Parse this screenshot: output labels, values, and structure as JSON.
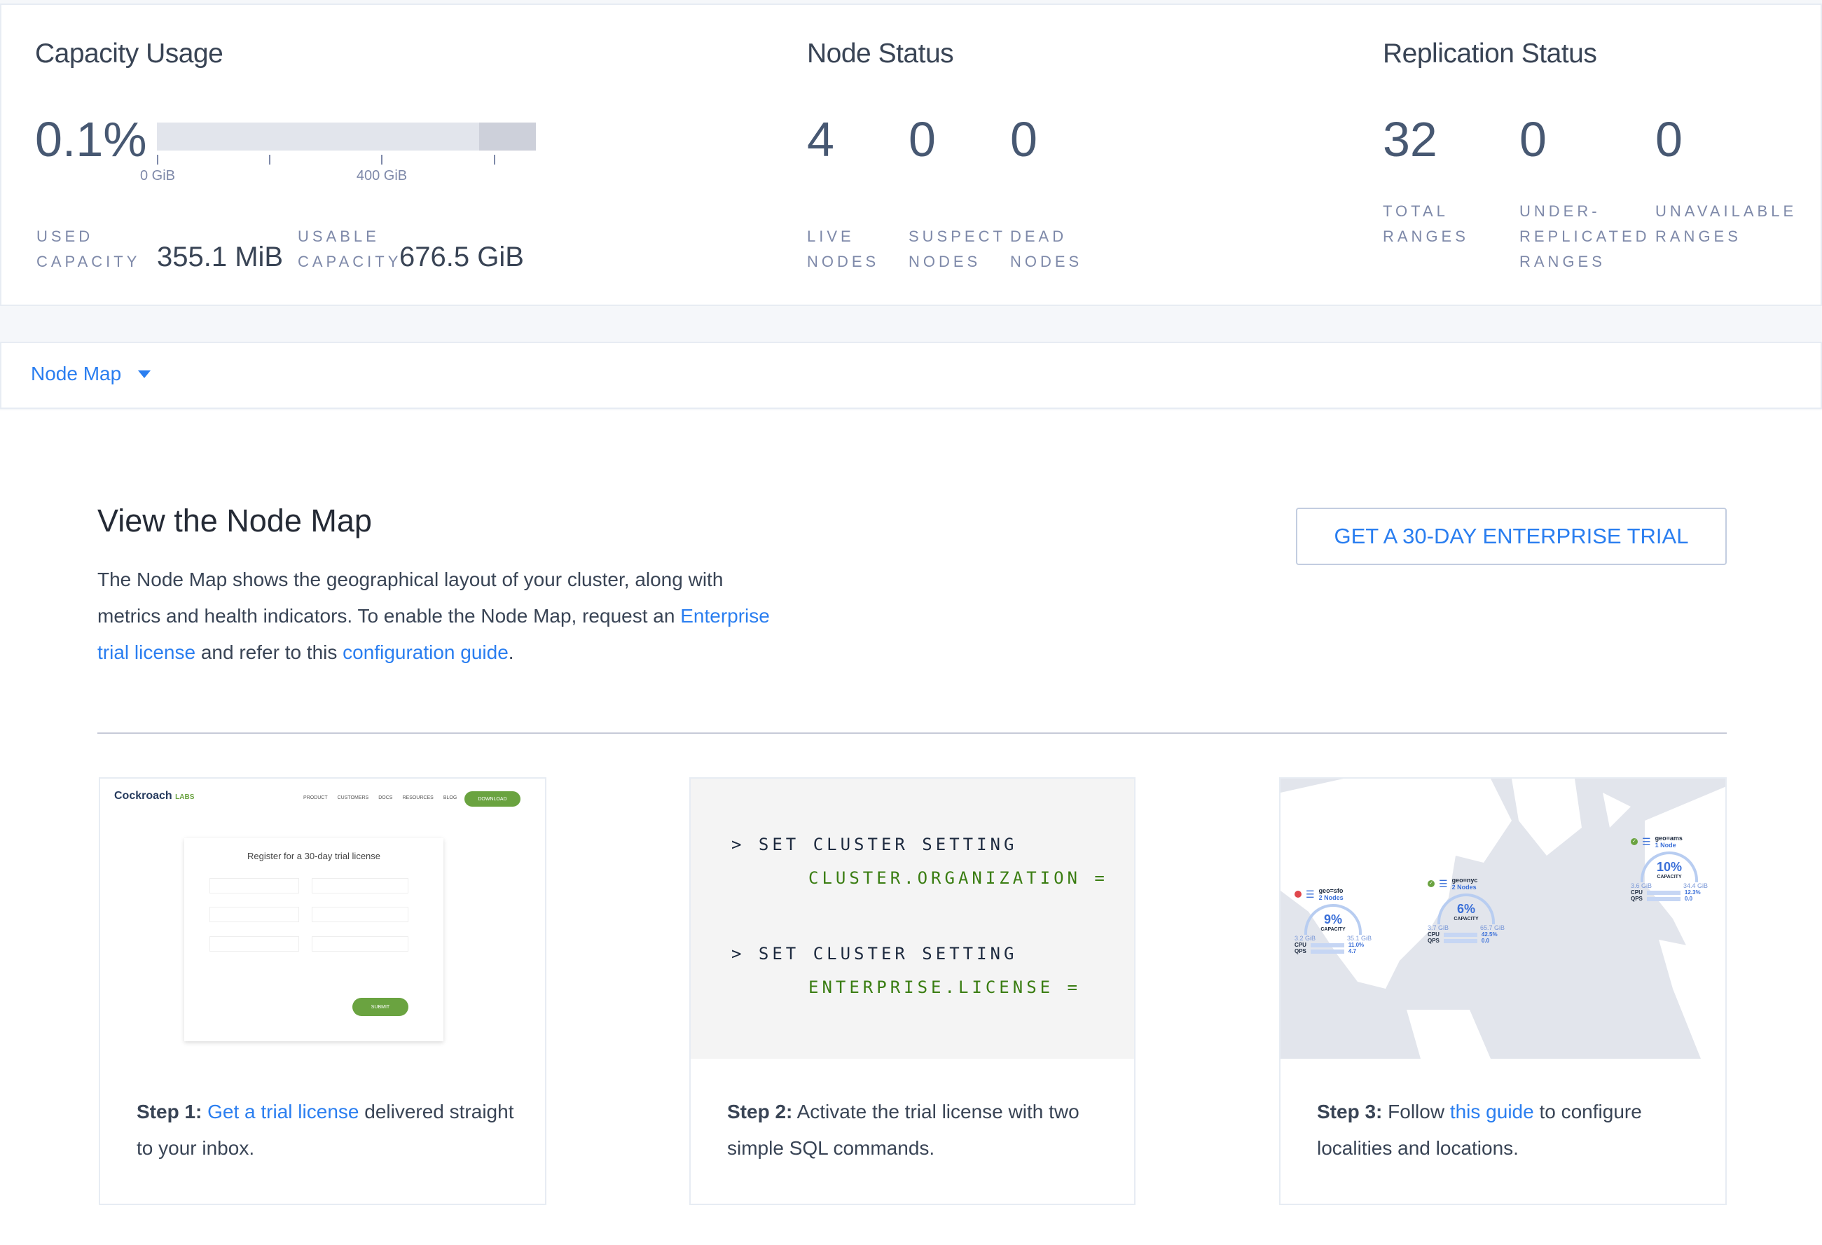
{
  "capacity": {
    "title": "Capacity Usage",
    "percent": "0.1%",
    "percent_value": 0.1,
    "axis": [
      "0 GiB",
      "400 GiB"
    ],
    "used_label_1": "USED",
    "used_label_2": "CAPACITY",
    "used_value": "355.1 MiB",
    "usable_label_1": "USABLE",
    "usable_label_2": "CAPACITY",
    "usable_value": "676.5 GiB"
  },
  "node_status": {
    "title": "Node Status",
    "items": [
      {
        "value": "4",
        "l1": "LIVE",
        "l2": "NODES"
      },
      {
        "value": "0",
        "l1": "SUSPECT",
        "l2": "NODES"
      },
      {
        "value": "0",
        "l1": "DEAD",
        "l2": "NODES"
      }
    ]
  },
  "replication": {
    "title": "Replication Status",
    "items": [
      {
        "value": "32",
        "l0": "",
        "l1": "TOTAL",
        "l2": "RANGES"
      },
      {
        "value": "0",
        "l0": "UNDER-",
        "l1": "REPLICATED",
        "l2": "RANGES"
      },
      {
        "value": "0",
        "l0": "",
        "l1": "UNAVAILABLE",
        "l2": "RANGES"
      }
    ]
  },
  "dropdown": {
    "label": "Node Map",
    "icon": "caret-down-icon"
  },
  "promo": {
    "title": "View the Node Map",
    "button": "GET A 30-DAY ENTERPRISE TRIAL",
    "p1": "The Node Map shows the geographical layout of your cluster, along with metrics and health indicators. To enable the Node Map, request an ",
    "link1": "Enterprise trial license",
    "p2": " and refer to this ",
    "link2": "configuration guide",
    "p3": "."
  },
  "steps": [
    {
      "bold": "Step 1:",
      "link": "Get a trial license",
      "rest": " delivered straight to your inbox.",
      "pre": " "
    },
    {
      "bold": "Step 2:",
      "rest": " Activate the trial license with two simple SQL commands."
    },
    {
      "bold": "Step 3:",
      "pre": " Follow ",
      "link": "this guide",
      "rest": " to configure localities and locations."
    }
  ],
  "step1_image": {
    "brand": "Cockroach",
    "brand_suffix": "LABS",
    "nav": [
      "PRODUCT",
      "CUSTOMERS",
      "DOCS",
      "RESOURCES",
      "BLOG"
    ],
    "download": "DOWNLOAD",
    "form_title": "Register for a 30-day trial license",
    "submit": "SUBMIT"
  },
  "sql": {
    "line1": "> SET CLUSTER SETTING",
    "line2": "CLUSTER.ORGANIZATION =",
    "line3": "> SET CLUSTER SETTING",
    "line4": "ENTERPRISE.LICENSE ="
  },
  "map_nodes": [
    {
      "name": "geo=sfo",
      "nodes": "2 Nodes",
      "pct": "9%",
      "cap": "CAPACITY",
      "used": "3.2 GiB",
      "total": "35.1 GiB",
      "cpu": "11.0%",
      "qps": "4.7",
      "status": "1"
    },
    {
      "name": "geo=nyc",
      "nodes": "2 Nodes",
      "pct": "6%",
      "cap": "CAPACITY",
      "used": "3.7 GiB",
      "total": "65.7 GiB",
      "cpu": "42.5%",
      "qps": "0.0",
      "status": "ok"
    },
    {
      "name": "geo=ams",
      "nodes": "1 Node",
      "pct": "10%",
      "cap": "CAPACITY",
      "used": "3.6 GiB",
      "total": "34.4 GiB",
      "cpu": "12.3%",
      "qps": "0.0",
      "status": "ok"
    }
  ],
  "colors": {
    "accent": "#2a7ef0",
    "green": "#3a7d12",
    "bg": "#f5f7fa"
  }
}
